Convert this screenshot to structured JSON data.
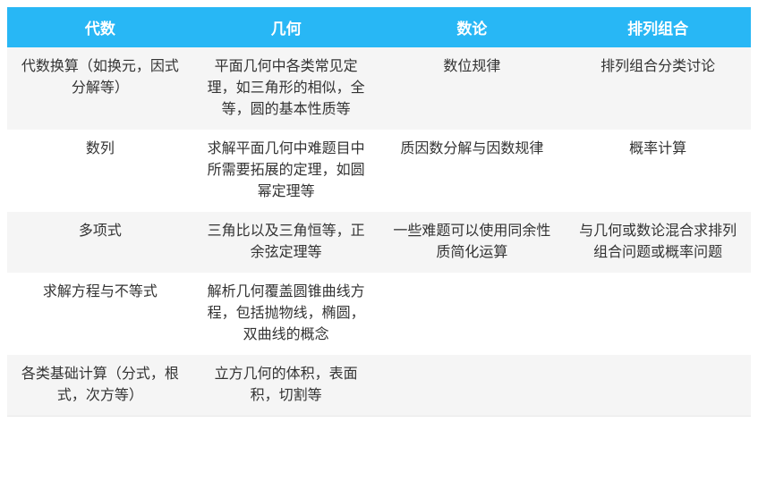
{
  "table": {
    "type": "table",
    "header_bg_color": "#28b7f5",
    "header_text_color": "#ffffff",
    "header_font_size": 17,
    "header_font_weight": "bold",
    "cell_font_size": 16,
    "cell_text_color": "#333333",
    "odd_row_bg": "#f5f5f5",
    "even_row_bg": "#ffffff",
    "border_color": "#e8e8e8",
    "text_align": "center",
    "line_height": 1.5,
    "columns": [
      "代数",
      "几何",
      "数论",
      "排列组合"
    ],
    "rows": [
      [
        "代数换算（如换元，因式分解等）",
        "平面几何中各类常见定理，如三角形的相似，全等，圆的基本性质等",
        "数位规律",
        "排列组合分类讨论"
      ],
      [
        "数列",
        "求解平面几何中难题目中所需要拓展的定理，如圆幂定理等",
        "质因数分解与因数规律",
        "概率计算"
      ],
      [
        "多项式",
        "三角比以及三角恒等，正余弦定理等",
        "一些难题可以使用同余性质简化运算",
        "与几何或数论混合求排列组合问题或概率问题"
      ],
      [
        "求解方程与不等式",
        "解析几何覆盖圆锥曲线方程，包括抛物线，椭圆，双曲线的概念",
        "",
        ""
      ],
      [
        "各类基础计算（分式，根式，次方等）",
        "立方几何的体积，表面积，切割等",
        "",
        ""
      ]
    ]
  }
}
